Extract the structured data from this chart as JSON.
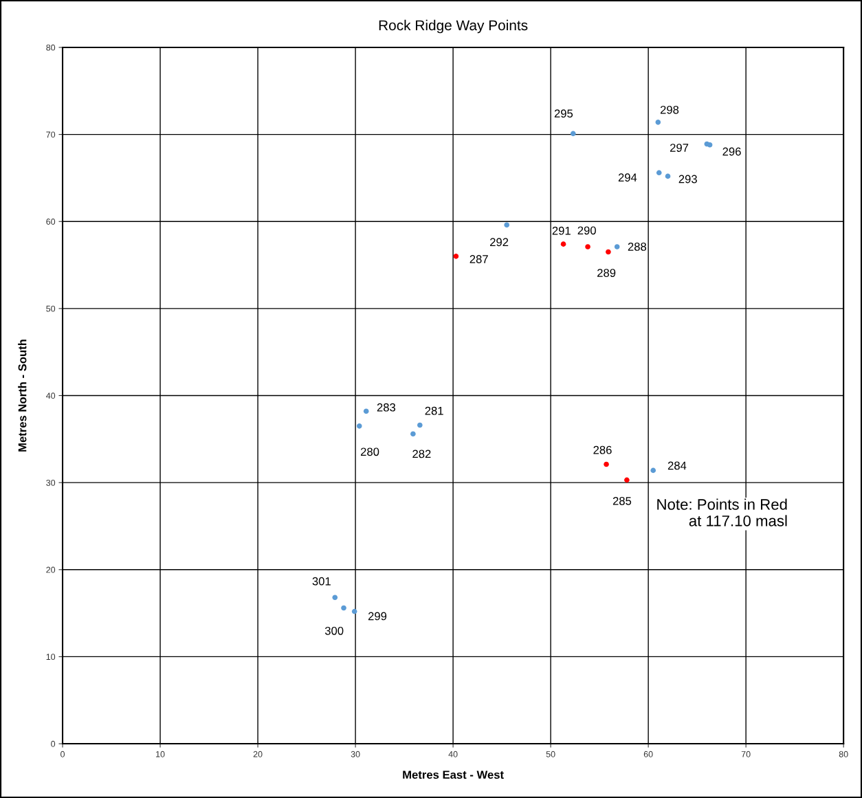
{
  "chart_data": {
    "type": "scatter",
    "title": "Rock Ridge Way Points",
    "xlabel": "Metres East - West",
    "ylabel": "Metres North - South",
    "series": [
      {
        "color": "#5b9bd5",
        "x": [
          31.1,
          30.4,
          36.6,
          35.9,
          60.5,
          27.9,
          28.8,
          29.9,
          45.5,
          56.8,
          52.3,
          61.0,
          66.0,
          66.3,
          61.1,
          62.0
        ],
        "values": [
          38.2,
          36.5,
          36.6,
          35.6,
          31.4,
          16.8,
          15.6,
          15.2,
          59.6,
          57.1,
          70.1,
          71.4,
          68.9,
          68.8,
          65.6,
          65.2
        ]
      },
      {
        "color": "#ff0000",
        "x": [
          55.7,
          57.8,
          40.3,
          51.3,
          53.8,
          55.9
        ],
        "values": [
          32.1,
          30.3,
          56.0,
          57.4,
          57.1,
          56.5
        ]
      }
    ],
    "annotations": [
      {
        "text": "283",
        "x": 31.1,
        "y": 38.2
      },
      {
        "text": "280",
        "x": 30.4,
        "y": 36.5
      },
      {
        "text": "281",
        "x": 36.6,
        "y": 36.6
      },
      {
        "text": "282",
        "x": 35.9,
        "y": 35.6
      },
      {
        "text": "284",
        "x": 60.5,
        "y": 31.4
      },
      {
        "text": "301",
        "x": 27.9,
        "y": 16.8
      },
      {
        "text": "300",
        "x": 28.8,
        "y": 15.6
      },
      {
        "text": "299",
        "x": 29.9,
        "y": 15.2
      },
      {
        "text": "292",
        "x": 45.5,
        "y": 59.6
      },
      {
        "text": "288",
        "x": 56.8,
        "y": 57.1
      },
      {
        "text": "295",
        "x": 52.3,
        "y": 70.1
      },
      {
        "text": "298",
        "x": 61.0,
        "y": 71.4
      },
      {
        "text": "297",
        "x": 66.0,
        "y": 68.9
      },
      {
        "text": "296",
        "x": 66.3,
        "y": 68.8
      },
      {
        "text": "294",
        "x": 61.1,
        "y": 65.6
      },
      {
        "text": "293",
        "x": 62.0,
        "y": 65.2
      },
      {
        "text": "286",
        "x": 55.7,
        "y": 32.1
      },
      {
        "text": "285",
        "x": 57.8,
        "y": 30.3
      },
      {
        "text": "287",
        "x": 40.3,
        "y": 56.0
      },
      {
        "text": "291",
        "x": 51.3,
        "y": 57.4
      },
      {
        "text": "290",
        "x": 53.8,
        "y": 57.1
      },
      {
        "text": "289",
        "x": 55.9,
        "y": 56.5
      },
      "Note: Points in Red\nat 117.10 masl"
    ],
    "xlim": [
      0,
      80
    ],
    "ylim": [
      0,
      80
    ],
    "xticks": [
      0,
      10,
      20,
      30,
      40,
      50,
      60,
      70,
      80
    ],
    "yticks": [
      0,
      10,
      20,
      30,
      40,
      50,
      60,
      70,
      80
    ],
    "grid": true,
    "marker": "circle",
    "legend": false
  }
}
